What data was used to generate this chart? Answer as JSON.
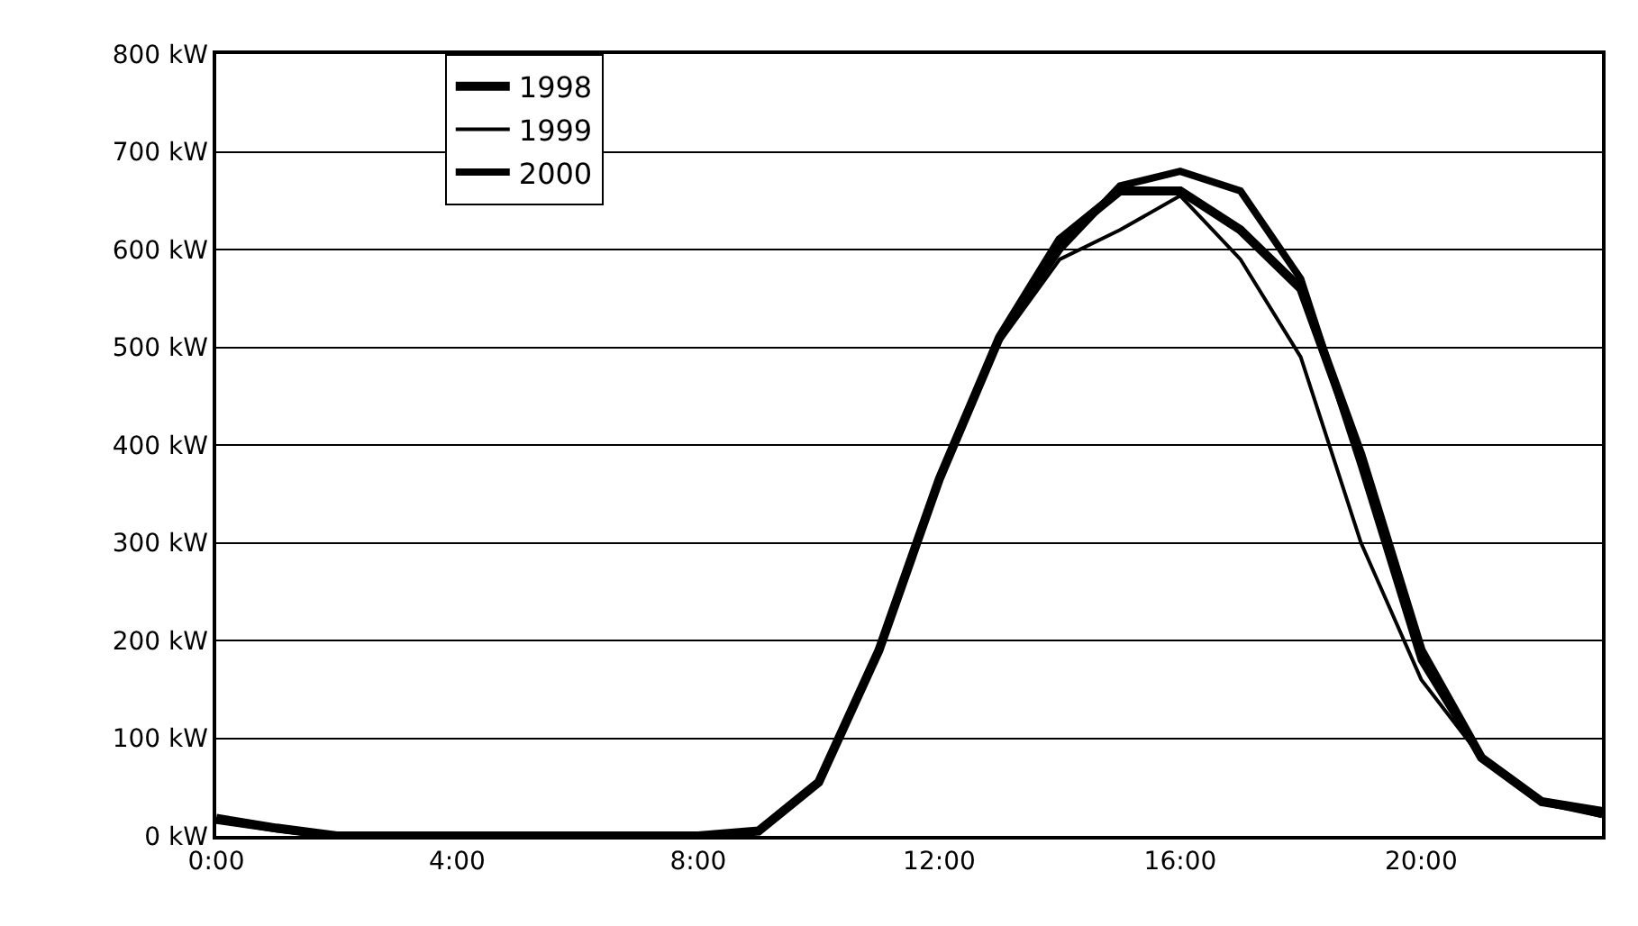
{
  "chart_data": {
    "type": "line",
    "x": [
      0,
      1,
      2,
      3,
      4,
      5,
      6,
      7,
      8,
      9,
      10,
      11,
      12,
      13,
      14,
      15,
      16,
      17,
      18,
      19,
      20,
      21,
      22,
      23
    ],
    "series": [
      {
        "name": "1998",
        "color": "#000000",
        "values": [
          18,
          8,
          0,
          0,
          0,
          0,
          0,
          0,
          0,
          5,
          55,
          190,
          365,
          510,
          610,
          660,
          660,
          620,
          560,
          390,
          190,
          80,
          35,
          25
        ]
      },
      {
        "name": "1999",
        "color": "#000000",
        "values": [
          15,
          6,
          0,
          0,
          0,
          0,
          0,
          0,
          0,
          5,
          55,
          190,
          365,
          505,
          590,
          620,
          655,
          590,
          490,
          300,
          160,
          80,
          35,
          20
        ]
      },
      {
        "name": "2000",
        "color": "#000000",
        "values": [
          16,
          7,
          0,
          0,
          0,
          0,
          0,
          0,
          0,
          5,
          55,
          190,
          365,
          510,
          600,
          665,
          680,
          660,
          570,
          380,
          180,
          80,
          35,
          22
        ]
      }
    ],
    "xlim": [
      0,
      23
    ],
    "xticks": [
      {
        "value": 0,
        "label": "0:00"
      },
      {
        "value": 4,
        "label": "4:00"
      },
      {
        "value": 8,
        "label": "8:00"
      },
      {
        "value": 12,
        "label": "12:00"
      },
      {
        "value": 16,
        "label": "16:00"
      },
      {
        "value": 20,
        "label": "20:00"
      }
    ],
    "ylim": [
      0,
      800
    ],
    "yticks": [
      {
        "value": 0,
        "label": "0 kW"
      },
      {
        "value": 100,
        "label": "100 kW"
      },
      {
        "value": 200,
        "label": "200 kW"
      },
      {
        "value": 300,
        "label": "300 kW"
      },
      {
        "value": 400,
        "label": "400 kW"
      },
      {
        "value": 500,
        "label": "500 kW"
      },
      {
        "value": 600,
        "label": "600 kW"
      },
      {
        "value": 700,
        "label": "700 kW"
      },
      {
        "value": 800,
        "label": "800 kW"
      }
    ],
    "grid": "y",
    "legend": "top left",
    "marker": "none",
    "line_style": "solid"
  }
}
